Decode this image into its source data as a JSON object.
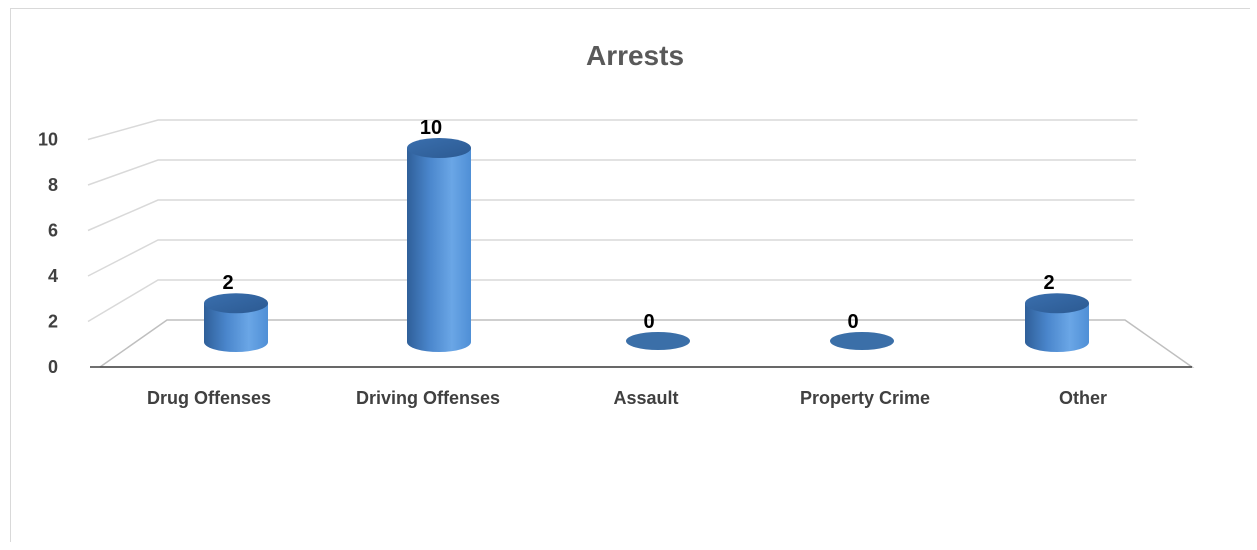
{
  "chart_data": {
    "type": "bar",
    "style": "3d-cylinder",
    "title": "Arrests",
    "categories": [
      "Drug Offenses",
      "Driving Offenses",
      "Assault",
      "Property Crime",
      "Other"
    ],
    "series": [
      {
        "values": [
          2,
          10,
          0,
          0,
          2
        ],
        "color": "#4f8fd6"
      }
    ],
    "ylim": [
      0,
      10
    ],
    "yticks": [
      0,
      2,
      4,
      6,
      8,
      10
    ],
    "data_labels": [
      "2",
      "10",
      "0",
      "0",
      "2"
    ],
    "grid": true,
    "legend": "none"
  }
}
